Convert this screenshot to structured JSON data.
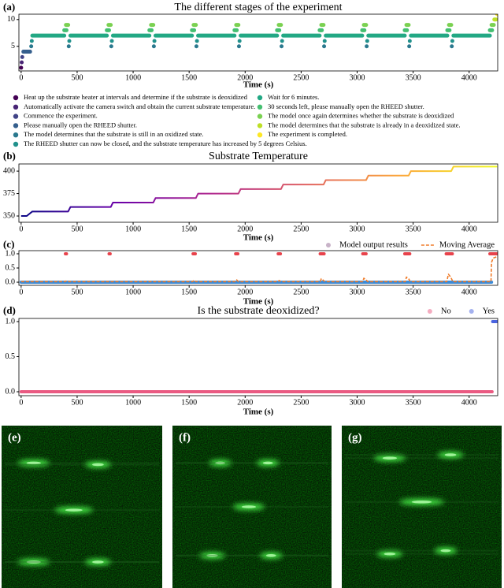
{
  "chart_data": [
    {
      "type": "scatter",
      "label": "(a)",
      "title": "The different stages of the experiment",
      "xlabel": "Time (s)",
      "xlim": [
        -20,
        4255
      ],
      "ylim": [
        0.4,
        11
      ],
      "xticks": [
        0,
        500,
        1000,
        1500,
        2000,
        2500,
        3000,
        3500,
        4000
      ],
      "yticks": [
        5,
        10
      ],
      "legend": {
        "loc": "below",
        "columns": 2
      },
      "series": [
        {
          "name": "Heat up the substrate heater at intervals and determine if the substrate is deoxidized",
          "color": "#440154",
          "x": [
            0
          ],
          "values": [
            1
          ]
        },
        {
          "name": "Automatically activate the camera switch and obtain the current substrate temperature.",
          "color": "#482475",
          "x": [
            5
          ],
          "values": [
            2
          ]
        },
        {
          "name": "Commence the experiment.",
          "color": "#414487",
          "x": [
            10
          ],
          "values": [
            3
          ]
        },
        {
          "name": "Please manually open the RHEED shutter.",
          "color": "#355f8d",
          "x": [
            20,
            80
          ],
          "values": [
            4,
            4
          ]
        },
        {
          "name": "The model determines that the substrate is still in an oxidized state.",
          "color": "#2a788e",
          "x": [
            90,
            null,
            425,
            null,
            805,
            null,
            1185,
            null,
            1565,
            null,
            1945,
            null,
            2325,
            null,
            2705,
            null,
            3085,
            null,
            3465,
            null,
            3845
          ],
          "values": [
            5,
            null,
            5,
            null,
            5,
            null,
            5,
            null,
            5,
            null,
            5,
            null,
            5,
            null,
            5,
            null,
            5,
            null,
            5,
            null,
            5
          ]
        },
        {
          "name": "The RHEED shutter can now be closed, and the substrate temperature has increased by 5 degrees Celsius.",
          "color": "#21918c",
          "x": [
            95,
            null,
            430,
            null,
            810,
            null,
            1190,
            null,
            1570,
            null,
            1950,
            null,
            2330,
            null,
            2710,
            null,
            3090,
            null,
            3470,
            null,
            3850
          ],
          "values": [
            6,
            null,
            6,
            null,
            6,
            null,
            6,
            null,
            6,
            null,
            6,
            null,
            6,
            null,
            6,
            null,
            6,
            null,
            6,
            null,
            6
          ]
        },
        {
          "name": "Wait for 6 minutes.",
          "color": "#22a884",
          "x": [
            100,
            385,
            null,
            440,
            765,
            null,
            820,
            1145,
            null,
            1200,
            1525,
            null,
            1580,
            1905,
            null,
            1960,
            2285,
            null,
            2340,
            2665,
            null,
            2720,
            3045,
            null,
            3100,
            3425,
            null,
            3480,
            3805,
            null,
            3860,
            4185
          ],
          "values": [
            7,
            7,
            null,
            7,
            7,
            null,
            7,
            7,
            null,
            7,
            7,
            null,
            7,
            7,
            null,
            7,
            7,
            null,
            7,
            7,
            null,
            7,
            7,
            null,
            7,
            7,
            null,
            7,
            7,
            null,
            7,
            7
          ]
        },
        {
          "name": "30 seconds left, please manually open the RHEED shutter.",
          "color": "#44bf70",
          "x": [
            385,
            405,
            null,
            765,
            785,
            null,
            1145,
            1165,
            null,
            1525,
            1545,
            null,
            1905,
            1925,
            null,
            2285,
            2305,
            null,
            2665,
            2685,
            null,
            3045,
            3065,
            null,
            3425,
            3445,
            null,
            3805,
            3825,
            null,
            4185,
            4205
          ],
          "values": [
            8,
            8,
            null,
            8,
            8,
            null,
            8,
            8,
            null,
            8,
            8,
            null,
            8,
            8,
            null,
            8,
            8,
            null,
            8,
            8,
            null,
            8,
            8,
            null,
            8,
            8,
            null,
            8,
            8,
            null,
            8,
            8
          ]
        },
        {
          "name": "The model once again determines whether the substrate is deoxidized",
          "color": "#7ad151",
          "x": [
            400,
            420,
            null,
            780,
            800,
            null,
            1160,
            1180,
            null,
            1540,
            1560,
            null,
            1920,
            1940,
            null,
            2300,
            2320,
            null,
            2680,
            2700,
            null,
            3060,
            3080,
            null,
            3440,
            3460,
            null,
            3820,
            3840,
            null,
            4200,
            4220
          ],
          "values": [
            9,
            9,
            null,
            9,
            9,
            null,
            9,
            9,
            null,
            9,
            9,
            null,
            9,
            9,
            null,
            9,
            9,
            null,
            9,
            9,
            null,
            9,
            9,
            null,
            9,
            9,
            null,
            9,
            9,
            null,
            9,
            9
          ]
        },
        {
          "name": "The model determines that the substrate is already in a deoxidized state.",
          "color": "#bddf26",
          "x": [
            4225,
            4240
          ],
          "values": [
            10,
            10
          ]
        },
        {
          "name": "The experiment is completed.",
          "color": "#fde725",
          "x": [
            4250
          ],
          "values": [
            11
          ]
        }
      ]
    },
    {
      "type": "line",
      "label": "(b)",
      "title": "Substrate Temperature",
      "xlabel": "Time (s)",
      "xlim": [
        -20,
        4255
      ],
      "ylim": [
        343,
        408
      ],
      "xticks": [
        0,
        500,
        1000,
        1500,
        2000,
        2500,
        3000,
        3500,
        4000
      ],
      "yticks": [
        350,
        375,
        400
      ],
      "colormap": [
        "#0d0887",
        "#6a00a8",
        "#b12a90",
        "#e16462",
        "#fca636",
        "#f0f921"
      ],
      "x": [
        0,
        50,
        100,
        420,
        440,
        800,
        820,
        1180,
        1200,
        1560,
        1580,
        1940,
        1960,
        2320,
        2340,
        2700,
        2720,
        3080,
        3100,
        3460,
        3480,
        3840,
        3860,
        4250
      ],
      "values": [
        350,
        350,
        355,
        355,
        360,
        360,
        365,
        365,
        370,
        370,
        375,
        375,
        380,
        380,
        385,
        385,
        390,
        390,
        395,
        395,
        400,
        400,
        405,
        405
      ]
    },
    {
      "type": "scatter",
      "label": "(c)",
      "xlabel": "Time (s)",
      "xlim": [
        -20,
        4255
      ],
      "ylim": [
        -0.11,
        1.11
      ],
      "xticks": [
        0,
        500,
        1000,
        1500,
        2000,
        2500,
        3000,
        3500,
        4000
      ],
      "yticks": [
        {
          "value": 0,
          "label": "0.0"
        },
        {
          "value": 0.5,
          "label": "0.5"
        },
        {
          "value": 1,
          "label": "1.0"
        }
      ],
      "colormap": [
        "#3b8bd8",
        "#e8424b"
      ],
      "clim": [
        0,
        1
      ],
      "legend": {
        "loc": "upper right"
      },
      "series": [
        {
          "name": "Model output results",
          "x": [
            0,
            4200,
            null,
            395,
            405,
            null,
            785,
            795,
            null,
            1535,
            1555,
            null,
            1915,
            1935,
            null,
            2295,
            2315,
            null,
            2670,
            2705,
            null,
            3050,
            3080,
            null,
            3425,
            3470,
            null,
            3795,
            3850,
            null,
            4185,
            4250
          ],
          "values": [
            0,
            0,
            null,
            1,
            1,
            null,
            1,
            1,
            null,
            1,
            1,
            null,
            1,
            1,
            null,
            1,
            1,
            null,
            1,
            1,
            null,
            1,
            1,
            null,
            1,
            1,
            null,
            1,
            1,
            null,
            1,
            1
          ]
        },
        {
          "name": "Moving Average",
          "type": "line",
          "linestyle": "dashed",
          "color": "#f07c2a",
          "x": [
            0,
            390,
            400,
            410,
            1530,
            1545,
            1560,
            1910,
            1925,
            1940,
            2290,
            2305,
            2320,
            2670,
            2680,
            2700,
            2715,
            3050,
            3060,
            3080,
            3095,
            3430,
            3440,
            3460,
            3475,
            3800,
            3815,
            3835,
            3855,
            4180,
            4195,
            4200,
            4215,
            4250
          ],
          "values": [
            0.02,
            0.02,
            0.04,
            0.02,
            0.02,
            0.07,
            0.02,
            0.02,
            0.08,
            0.02,
            0.02,
            0.06,
            0.02,
            0.02,
            0.12,
            0.06,
            0.02,
            0.02,
            0.14,
            0.08,
            0.02,
            0.02,
            0.18,
            0.12,
            0.02,
            0.02,
            0.28,
            0.18,
            0.02,
            0.02,
            0.02,
            0.7,
            0.85,
            0.9
          ]
        }
      ]
    },
    {
      "type": "scatter",
      "label": "(d)",
      "title": "Is the substrate deoxidized?",
      "xlabel": "Time (s)",
      "xlim": [
        -20,
        4255
      ],
      "ylim": [
        -0.056,
        1.045
      ],
      "xticks": [
        0,
        500,
        1000,
        1500,
        2000,
        2500,
        3000,
        3500,
        4000
      ],
      "yticks": [
        {
          "value": 0,
          "label": "0.0"
        },
        {
          "value": 0.5,
          "label": "0.5"
        },
        {
          "value": 1,
          "label": "1.0"
        }
      ],
      "legend": {
        "loc": "upper right"
      },
      "series": [
        {
          "name": "No",
          "color": "#ea5a82",
          "x": [
            0,
            4205
          ],
          "values": [
            0,
            0
          ]
        },
        {
          "name": "Yes",
          "color": "#4a63e0",
          "x": [
            4210,
            4250
          ],
          "values": [
            1,
            1
          ]
        }
      ]
    }
  ],
  "images": [
    {
      "label": "(e)"
    },
    {
      "label": "(f)"
    },
    {
      "label": "(g)"
    }
  ]
}
